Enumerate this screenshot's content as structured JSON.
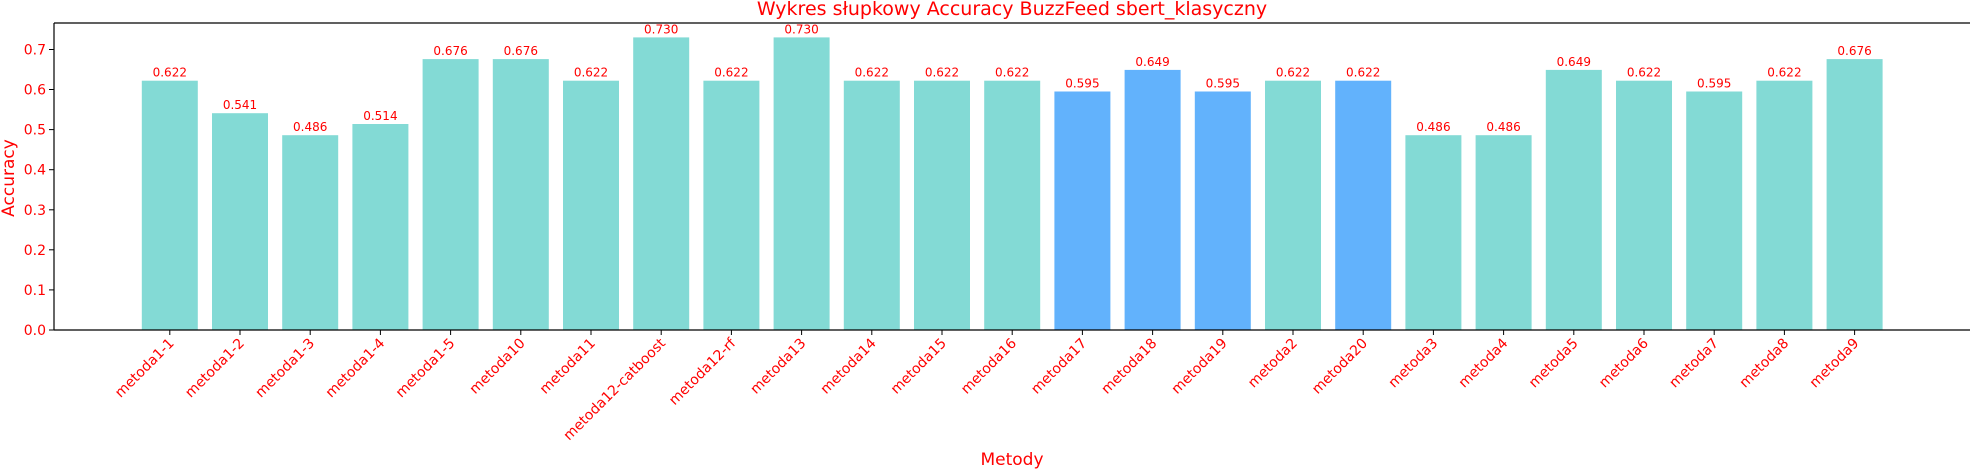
{
  "chart_data": {
    "type": "bar",
    "title": "Wykres słupkowy Accuracy BuzzFeed sbert_klasyczny",
    "xlabel": "Metody",
    "ylabel": "Accuracy",
    "ylim": [
      0,
      0.766
    ],
    "yticks": [
      0.0,
      0.1,
      0.2,
      0.3,
      0.4,
      0.5,
      0.6,
      0.7
    ],
    "ytick_labels": [
      "0.0",
      "0.1",
      "0.2",
      "0.3",
      "0.4",
      "0.5",
      "0.6",
      "0.7"
    ],
    "grid": false,
    "categories": [
      "metoda1-1",
      "metoda1-2",
      "metoda1-3",
      "metoda1-4",
      "metoda1-5",
      "metoda10",
      "metoda11",
      "metoda12-catboost",
      "metoda12-rf",
      "metoda13",
      "metoda14",
      "metoda15",
      "metoda16",
      "metoda17",
      "metoda18",
      "metoda19",
      "metoda2",
      "metoda20",
      "metoda3",
      "metoda4",
      "metoda5",
      "metoda6",
      "metoda7",
      "metoda8",
      "metoda9"
    ],
    "values": [
      0.622,
      0.541,
      0.486,
      0.514,
      0.676,
      0.676,
      0.622,
      0.73,
      0.622,
      0.73,
      0.622,
      0.622,
      0.622,
      0.595,
      0.649,
      0.595,
      0.622,
      0.622,
      0.486,
      0.486,
      0.649,
      0.622,
      0.595,
      0.622,
      0.676
    ],
    "value_labels": [
      "0.622",
      "0.541",
      "0.486",
      "0.514",
      "0.676",
      "0.676",
      "0.622",
      "0.730",
      "0.622",
      "0.730",
      "0.622",
      "0.622",
      "0.622",
      "0.595",
      "0.649",
      "0.595",
      "0.622",
      "0.622",
      "0.486",
      "0.486",
      "0.649",
      "0.622",
      "0.595",
      "0.622",
      "0.676"
    ],
    "bar_colors": [
      "#83dad5",
      "#83dad5",
      "#83dad5",
      "#83dad5",
      "#83dad5",
      "#83dad5",
      "#83dad5",
      "#83dad5",
      "#83dad5",
      "#83dad5",
      "#83dad5",
      "#83dad5",
      "#83dad5",
      "#62b2fc",
      "#62b2fc",
      "#62b2fc",
      "#83dad5",
      "#62b2fc",
      "#83dad5",
      "#83dad5",
      "#83dad5",
      "#83dad5",
      "#83dad5",
      "#83dad5",
      "#83dad5"
    ],
    "text_color": "#ff0000",
    "axis_color": "#000000"
  }
}
